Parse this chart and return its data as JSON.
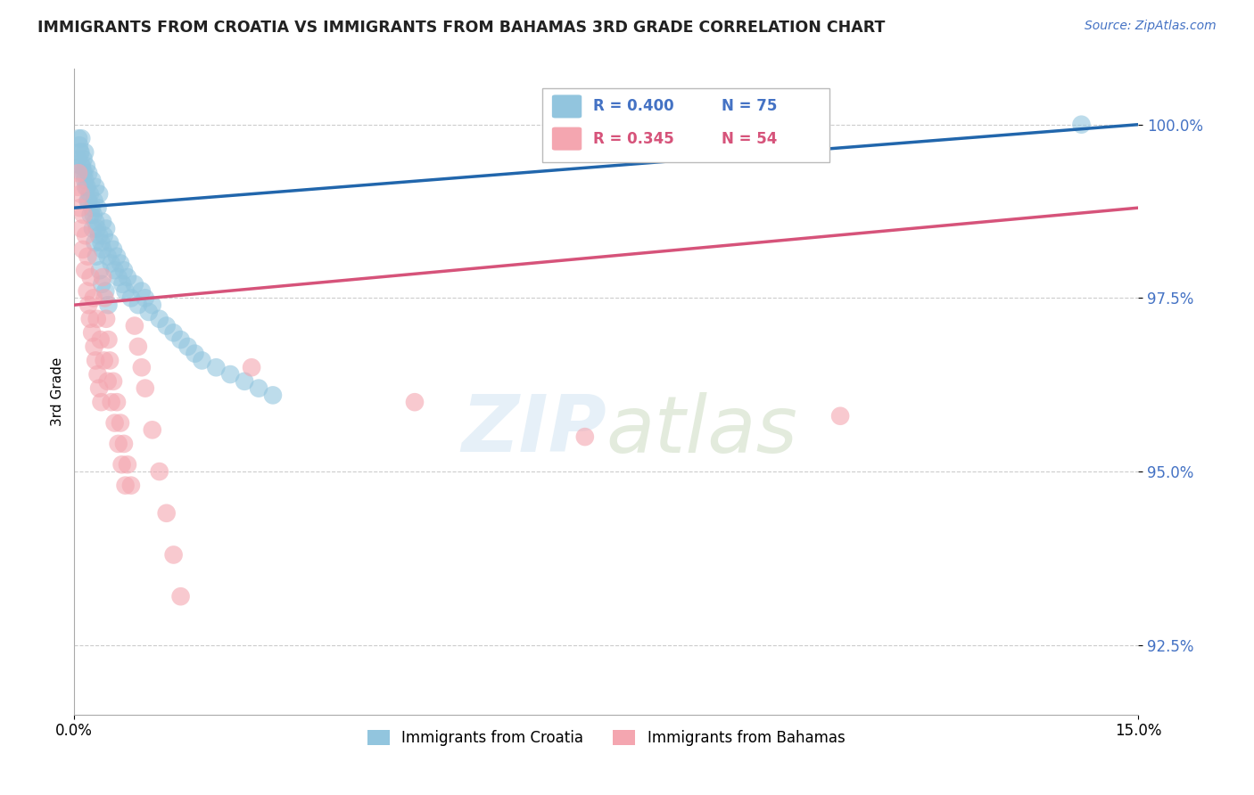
{
  "title": "IMMIGRANTS FROM CROATIA VS IMMIGRANTS FROM BAHAMAS 3RD GRADE CORRELATION CHART",
  "source": "Source: ZipAtlas.com",
  "ylabel": "3rd Grade",
  "xlim": [
    0.0,
    15.0
  ],
  "ylim": [
    91.5,
    100.8
  ],
  "yticks": [
    92.5,
    95.0,
    97.5,
    100.0
  ],
  "ytick_labels": [
    "92.5%",
    "95.0%",
    "97.5%",
    "100.0%"
  ],
  "croatia_color": "#92c5de",
  "bahamas_color": "#f4a6b0",
  "croatia_line_color": "#2166ac",
  "bahamas_line_color": "#d6537a",
  "croatia_R": 0.4,
  "croatia_N": 75,
  "bahamas_R": 0.345,
  "bahamas_N": 54,
  "legend_label_croatia": "Immigrants from Croatia",
  "legend_label_bahamas": "Immigrants from Bahamas",
  "croatia_x": [
    0.05,
    0.07,
    0.08,
    0.1,
    0.1,
    0.12,
    0.13,
    0.15,
    0.15,
    0.17,
    0.18,
    0.2,
    0.2,
    0.22,
    0.25,
    0.25,
    0.27,
    0.28,
    0.3,
    0.3,
    0.32,
    0.33,
    0.35,
    0.35,
    0.38,
    0.4,
    0.4,
    0.42,
    0.45,
    0.47,
    0.5,
    0.52,
    0.55,
    0.57,
    0.6,
    0.62,
    0.65,
    0.68,
    0.7,
    0.72,
    0.75,
    0.8,
    0.85,
    0.9,
    0.95,
    1.0,
    1.05,
    1.1,
    1.2,
    1.3,
    1.4,
    1.5,
    1.6,
    1.7,
    1.8,
    2.0,
    2.2,
    2.4,
    2.6,
    2.8,
    0.06,
    0.09,
    0.11,
    0.14,
    0.16,
    0.19,
    0.23,
    0.26,
    0.29,
    0.31,
    0.36,
    0.39,
    0.44,
    0.48,
    14.2
  ],
  "croatia_y": [
    99.5,
    99.7,
    99.6,
    99.8,
    99.4,
    99.3,
    99.5,
    99.6,
    99.2,
    99.4,
    99.1,
    99.3,
    98.9,
    99.0,
    99.2,
    98.8,
    98.7,
    98.9,
    99.1,
    98.6,
    98.5,
    98.8,
    98.4,
    99.0,
    98.3,
    98.6,
    98.2,
    98.4,
    98.5,
    98.1,
    98.3,
    98.0,
    98.2,
    97.9,
    98.1,
    97.8,
    98.0,
    97.7,
    97.9,
    97.6,
    97.8,
    97.5,
    97.7,
    97.4,
    97.6,
    97.5,
    97.3,
    97.4,
    97.2,
    97.1,
    97.0,
    96.9,
    96.8,
    96.7,
    96.6,
    96.5,
    96.4,
    96.3,
    96.2,
    96.1,
    99.8,
    99.6,
    99.4,
    99.3,
    99.1,
    98.9,
    98.7,
    98.5,
    98.3,
    98.1,
    97.9,
    97.7,
    97.6,
    97.4,
    100.0
  ],
  "bahamas_x": [
    0.05,
    0.08,
    0.1,
    0.12,
    0.15,
    0.18,
    0.2,
    0.22,
    0.25,
    0.28,
    0.3,
    0.33,
    0.35,
    0.38,
    0.4,
    0.43,
    0.45,
    0.48,
    0.5,
    0.55,
    0.6,
    0.65,
    0.7,
    0.75,
    0.8,
    0.85,
    0.9,
    0.95,
    1.0,
    1.1,
    1.2,
    1.3,
    1.4,
    1.5,
    0.06,
    0.09,
    0.13,
    0.16,
    0.19,
    0.23,
    0.27,
    0.32,
    0.37,
    0.42,
    0.47,
    0.52,
    0.57,
    0.62,
    0.67,
    0.72,
    2.5,
    4.8,
    7.2,
    10.8
  ],
  "bahamas_y": [
    99.1,
    98.8,
    98.5,
    98.2,
    97.9,
    97.6,
    97.4,
    97.2,
    97.0,
    96.8,
    96.6,
    96.4,
    96.2,
    96.0,
    97.8,
    97.5,
    97.2,
    96.9,
    96.6,
    96.3,
    96.0,
    95.7,
    95.4,
    95.1,
    94.8,
    97.1,
    96.8,
    96.5,
    96.2,
    95.6,
    95.0,
    94.4,
    93.8,
    93.2,
    99.3,
    99.0,
    98.7,
    98.4,
    98.1,
    97.8,
    97.5,
    97.2,
    96.9,
    96.6,
    96.3,
    96.0,
    95.7,
    95.4,
    95.1,
    94.8,
    96.5,
    96.0,
    95.5,
    95.8
  ],
  "croatia_trendline_x": [
    0.0,
    15.0
  ],
  "croatia_trendline_y": [
    98.8,
    100.0
  ],
  "bahamas_trendline_x": [
    0.0,
    15.0
  ],
  "bahamas_trendline_y": [
    97.4,
    98.8
  ]
}
